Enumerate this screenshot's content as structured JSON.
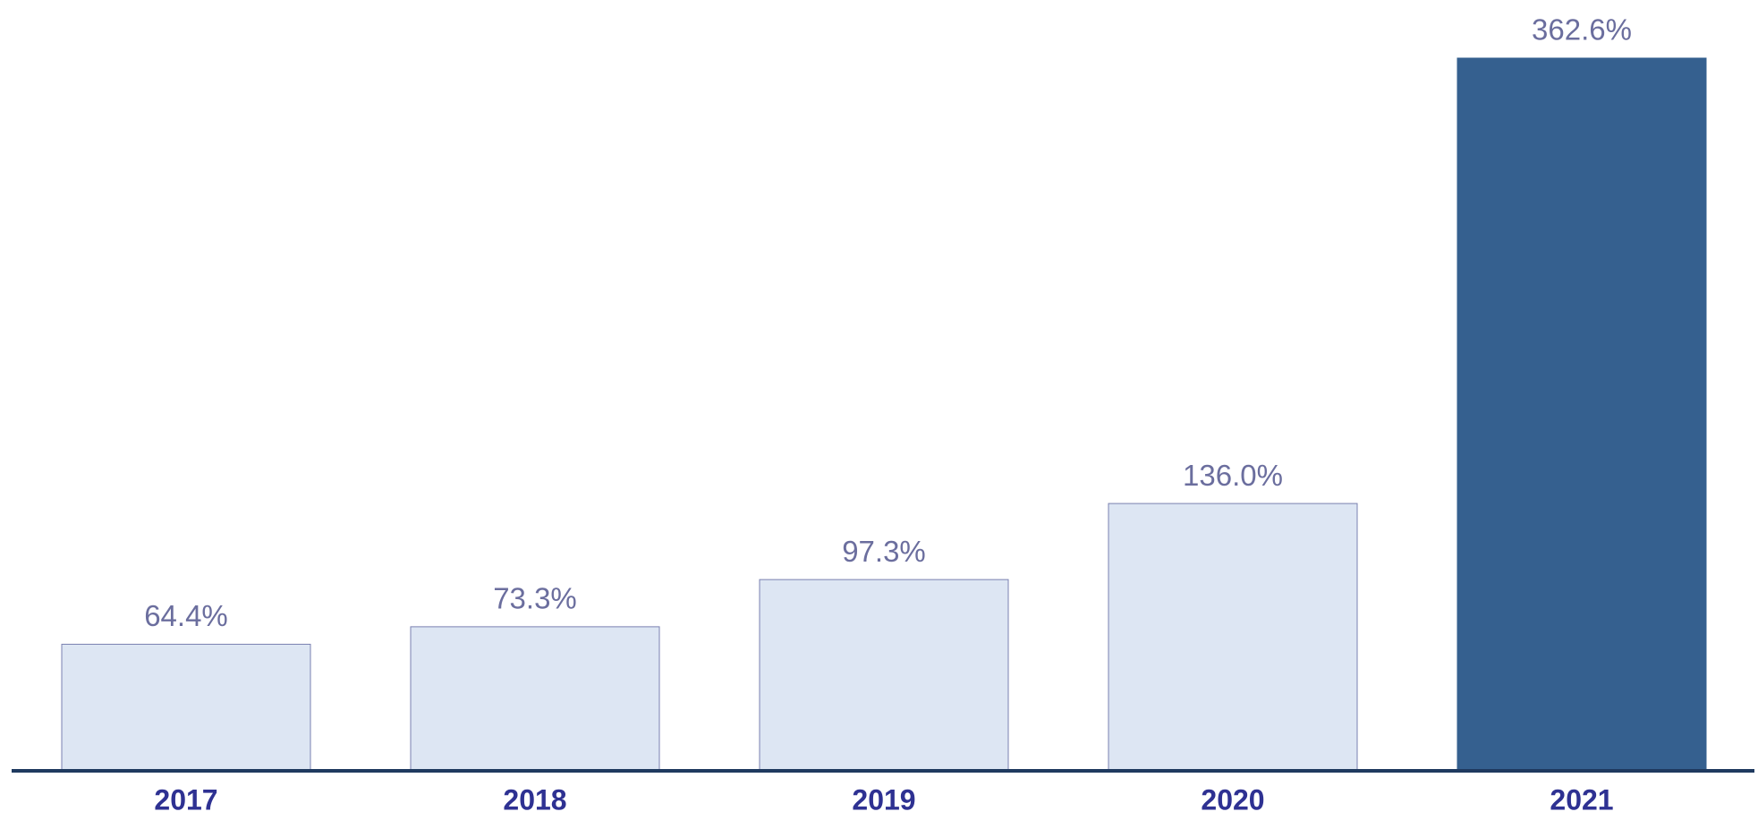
{
  "chart_data": {
    "type": "bar",
    "categories": [
      "2017",
      "2018",
      "2019",
      "2020",
      "2021"
    ],
    "values": [
      64.4,
      73.3,
      97.3,
      136.0,
      362.6
    ],
    "value_labels": [
      "64.4%",
      "73.3%",
      "97.3%",
      "136.0%",
      "362.6%"
    ],
    "colors": [
      "#dde6f3",
      "#dde6f3",
      "#dde6f3",
      "#dde6f3",
      "#35608f"
    ],
    "edge_colors": [
      "#7a80b0",
      "#7a80b0",
      "#7a80b0",
      "#7a80b0",
      "#35608f"
    ]
  }
}
